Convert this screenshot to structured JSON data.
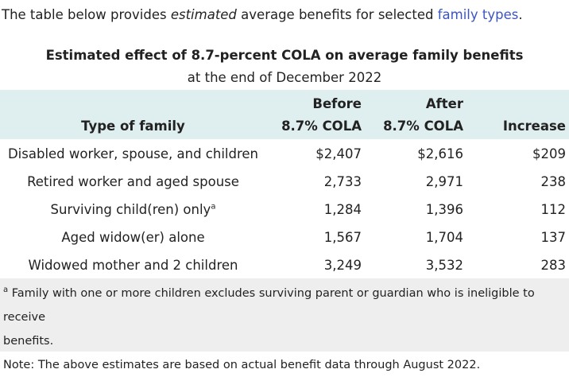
{
  "intro": {
    "before": "The table below provides ",
    "emph": "estimated",
    "middle": " average benefits for selected ",
    "link": "family types",
    "after": "."
  },
  "table": {
    "title": "Estimated effect of 8.7-percent COLA on average family benefits",
    "subtitle": "at the end of December 2022",
    "headers": {
      "type": "Type of family",
      "before_1": "Before",
      "before_2": "8.7% COLA",
      "after_1": "After",
      "after_2": "8.7% COLA",
      "increase": "Increase"
    },
    "rows": [
      {
        "type": "Disabled worker, spouse, and children",
        "sup": "",
        "before": "$2,407",
        "after": "$2,616",
        "increase": "$209"
      },
      {
        "type": "Retired worker and aged spouse",
        "sup": "",
        "before": "2,733",
        "after": "2,971",
        "increase": "238"
      },
      {
        "type": "Surviving child(ren) only",
        "sup": "a",
        "before": "1,284",
        "after": "1,396",
        "increase": "112"
      },
      {
        "type": "Aged widow(er) alone",
        "sup": "",
        "before": "1,567",
        "after": "1,704",
        "increase": "137"
      },
      {
        "type": "Widowed mother and 2 children",
        "sup": "",
        "before": "3,249",
        "after": "3,532",
        "increase": "283"
      }
    ]
  },
  "footnote": {
    "marker": "a",
    "text": " Family with one or more children excludes surviving parent or guardian who is ineligible to receive",
    "text2": "benefits.",
    "note": "Note: The above estimates are based on actual benefit data through August 2022."
  },
  "colors": {
    "link": "#3b55c0",
    "header_bg": "#dfefef",
    "footer_bg": "#eeeeee"
  }
}
